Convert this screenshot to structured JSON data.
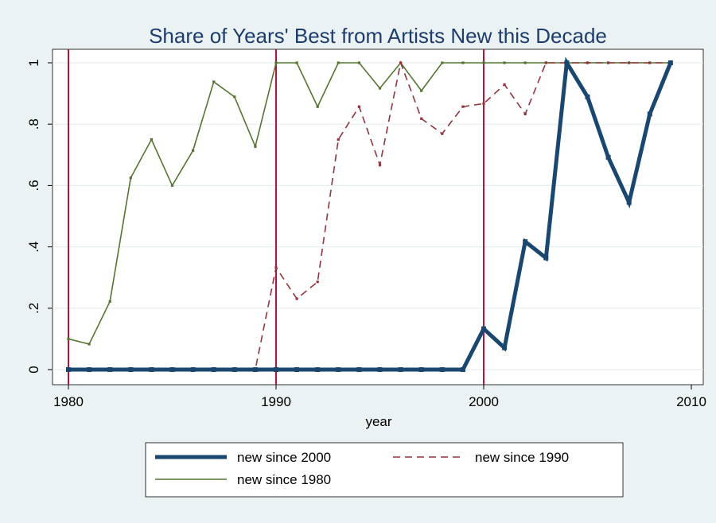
{
  "chart_data": {
    "type": "line",
    "title": "Share of Years' Best from Artists New this Decade",
    "xlabel": "year",
    "ylabel": "",
    "xlim": [
      1980,
      2010
    ],
    "ylim": [
      0,
      1
    ],
    "x_ticks": [
      1980,
      1990,
      2000,
      2010
    ],
    "x_tick_labels": [
      "1980",
      "1990",
      "2000",
      "2010"
    ],
    "y_ticks": [
      0,
      0.2,
      0.4,
      0.6,
      0.8,
      1
    ],
    "y_tick_labels": [
      "0",
      ".2",
      ".4",
      ".6",
      ".8",
      "1"
    ],
    "grid": "horizontal",
    "vertical_reference_lines": [
      1980,
      1990,
      2000
    ],
    "reference_line_color": "#b2123b",
    "legend_position": "bottom",
    "x": [
      1980,
      1981,
      1982,
      1983,
      1984,
      1985,
      1986,
      1987,
      1988,
      1989,
      1990,
      1991,
      1992,
      1993,
      1994,
      1995,
      1996,
      1997,
      1998,
      1999,
      2000,
      2001,
      2002,
      2003,
      2004,
      2005,
      2006,
      2007,
      2008,
      2009
    ],
    "series": [
      {
        "name": "new since 2000",
        "color": "#1a476f",
        "style": "solid-thick",
        "x": [
          1980,
          1981,
          1982,
          1983,
          1984,
          1985,
          1986,
          1987,
          1988,
          1989,
          1990,
          1991,
          1992,
          1993,
          1994,
          1995,
          1996,
          1997,
          1998,
          1999,
          2000,
          2001,
          2002,
          2003,
          2004,
          2005,
          2006,
          2007,
          2008,
          2009
        ],
        "values": [
          0,
          0,
          0,
          0,
          0,
          0,
          0,
          0,
          0,
          0,
          0,
          0,
          0,
          0,
          0,
          0,
          0,
          0,
          0,
          0,
          0.133,
          0.071,
          0.417,
          0.364,
          1,
          0.889,
          0.692,
          0.545,
          0.833,
          1
        ]
      },
      {
        "name": "new since 1990",
        "color": "#90353b",
        "style": "dashed",
        "x": [
          1980,
          1981,
          1982,
          1983,
          1984,
          1985,
          1986,
          1987,
          1988,
          1989,
          1990,
          1991,
          1992,
          1993,
          1994,
          1995,
          1996,
          1997,
          1998,
          1999,
          2000,
          2001,
          2002,
          2003,
          2004,
          2005,
          2006,
          2007,
          2008,
          2009
        ],
        "values": [
          0,
          0,
          0,
          0,
          0,
          0,
          0,
          0,
          0,
          0,
          0.333,
          0.231,
          0.286,
          0.75,
          0.857,
          0.667,
          1,
          0.818,
          0.769,
          0.857,
          0.867,
          0.929,
          0.833,
          1,
          1,
          1,
          1,
          1,
          1,
          1
        ]
      },
      {
        "name": "new since 1980",
        "color": "#55752f",
        "style": "solid-thin",
        "x": [
          1980,
          1981,
          1982,
          1983,
          1984,
          1985,
          1986,
          1987,
          1988,
          1989,
          1990,
          1991,
          1992,
          1993,
          1994,
          1995,
          1996,
          1997,
          1998,
          1999,
          2000,
          2001,
          2002,
          2003,
          2004,
          2005,
          2006,
          2007,
          2008,
          2009
        ],
        "values": [
          0.1,
          0.083,
          0.222,
          0.625,
          0.75,
          0.6,
          0.714,
          0.938,
          0.889,
          0.727,
          1,
          1,
          0.857,
          1,
          1,
          0.917,
          1,
          0.909,
          1,
          1,
          1,
          1,
          1,
          1,
          1,
          1,
          1,
          1,
          1,
          1
        ]
      }
    ]
  }
}
